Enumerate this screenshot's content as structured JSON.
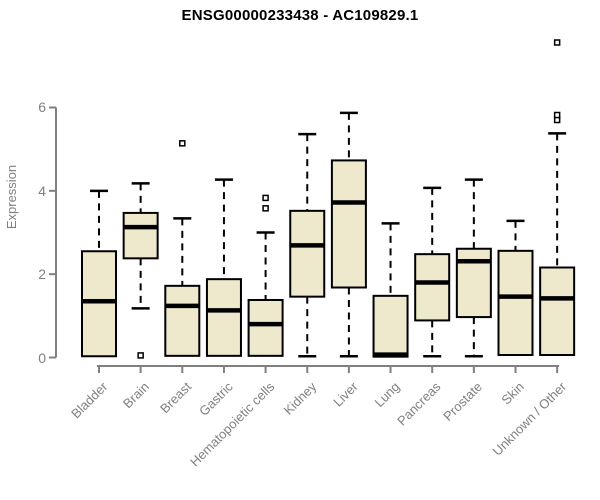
{
  "chart_data": {
    "type": "boxplot",
    "title": "ENSG00000233438 - AC109829.1",
    "ylabel": "Expression",
    "xlabel": "",
    "yticks": [
      0,
      2,
      4,
      6
    ],
    "ylim": [
      0,
      7.7
    ],
    "grid": false,
    "legend": null,
    "categories": [
      "Bladder",
      "Brain",
      "Breast",
      "Gastric",
      "Hematopoietic cells",
      "Kidney",
      "Liver",
      "Lung",
      "Pancreas",
      "Prostate",
      "Skin",
      "Unknown / Other"
    ],
    "series": [
      {
        "category": "Bladder",
        "min": 0.03,
        "q1": 0.03,
        "median": 1.35,
        "q3": 2.55,
        "max": 4.0,
        "outliers": []
      },
      {
        "category": "Brain",
        "min": 1.18,
        "q1": 2.38,
        "median": 3.13,
        "q3": 3.47,
        "max": 4.18,
        "outliers": [
          0.05
        ]
      },
      {
        "category": "Breast",
        "min": 0.04,
        "q1": 0.04,
        "median": 1.24,
        "q3": 1.72,
        "max": 3.34,
        "outliers": [
          5.14
        ]
      },
      {
        "category": "Gastric",
        "min": 0.04,
        "q1": 0.04,
        "median": 1.13,
        "q3": 1.88,
        "max": 4.27,
        "outliers": []
      },
      {
        "category": "Hematopoietic cells",
        "min": 0.04,
        "q1": 0.04,
        "median": 0.8,
        "q3": 1.38,
        "max": 3.0,
        "outliers": [
          3.58,
          3.83
        ]
      },
      {
        "category": "Kidney",
        "min": 0.03,
        "q1": 1.46,
        "median": 2.69,
        "q3": 3.52,
        "max": 5.36,
        "outliers": []
      },
      {
        "category": "Liver",
        "min": 0.03,
        "q1": 1.68,
        "median": 3.72,
        "q3": 4.73,
        "max": 5.87,
        "outliers": []
      },
      {
        "category": "Lung",
        "min": 0.02,
        "q1": 0.02,
        "median": 0.07,
        "q3": 1.48,
        "max": 3.22,
        "outliers": []
      },
      {
        "category": "Pancreas",
        "min": 0.03,
        "q1": 0.89,
        "median": 1.8,
        "q3": 2.48,
        "max": 4.07,
        "outliers": []
      },
      {
        "category": "Prostate",
        "min": 0.03,
        "q1": 0.97,
        "median": 2.31,
        "q3": 2.61,
        "max": 4.27,
        "outliers": []
      },
      {
        "category": "Skin",
        "min": 0.06,
        "q1": 0.06,
        "median": 1.46,
        "q3": 2.56,
        "max": 3.28,
        "outliers": []
      },
      {
        "category": "Unknown / Other",
        "min": 0.06,
        "q1": 0.06,
        "median": 1.42,
        "q3": 2.16,
        "max": 5.38,
        "outliers": [
          5.7,
          5.82,
          7.56
        ]
      }
    ],
    "colors": {
      "box_fill": "#EEE8CD",
      "box_stroke": "#000000",
      "median": "#000000",
      "whisker": "#000000",
      "outlier_stroke": "#000000",
      "axis": "#808080",
      "tick_label": "#808080",
      "title": "#000000",
      "background": "#FFFFFF"
    }
  }
}
